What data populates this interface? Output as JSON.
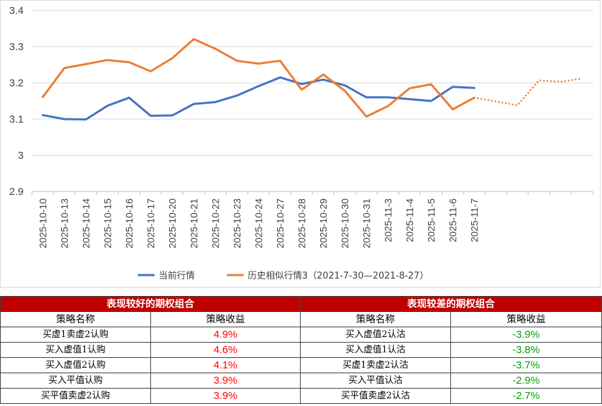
{
  "chart_data": {
    "type": "line",
    "categories": [
      "2025-10-10",
      "2025-10-13",
      "2025-10-14",
      "2025-10-15",
      "2025-10-16",
      "2025-10-17",
      "2025-10-20",
      "2025-10-21",
      "2025-10-22",
      "2025-10-23",
      "2025-10-24",
      "2025-10-27",
      "2025-10-28",
      "2025-10-29",
      "2025-10-30",
      "2025-10-31",
      "2025-11-3",
      "2025-11-4",
      "2025-11-5",
      "2025-11-6",
      "2025-11-7",
      "",
      "",
      "",
      "",
      ""
    ],
    "ylim": [
      2.9,
      3.4
    ],
    "yticks": [
      "2.9",
      "3",
      "3.1",
      "3.2",
      "3.3",
      "3.4"
    ],
    "ytick_values": [
      2.9,
      3.0,
      3.1,
      3.2,
      3.3,
      3.4
    ],
    "grid": "horizontal",
    "legend_position": "bottom",
    "series": [
      {
        "name": "当前行情",
        "color": "#4472c4",
        "style": "solid",
        "values": [
          3.111,
          3.1,
          3.099,
          3.137,
          3.159,
          3.109,
          3.11,
          3.142,
          3.147,
          3.165,
          3.191,
          3.215,
          3.197,
          3.209,
          3.193,
          3.16,
          3.16,
          3.155,
          3.15,
          3.189,
          3.186,
          null,
          null,
          null,
          null,
          null
        ]
      },
      {
        "name": "历史相似行情3（2021-7-30—2021-8-27）",
        "color": "#ed7d31",
        "style": "solid",
        "values": [
          3.161,
          3.241,
          3.252,
          3.263,
          3.257,
          3.232,
          3.268,
          3.321,
          3.294,
          3.261,
          3.253,
          3.261,
          3.181,
          3.223,
          3.178,
          3.107,
          3.136,
          3.185,
          3.196,
          3.127,
          3.159,
          null,
          null,
          null,
          null,
          null
        ]
      },
      {
        "name": "",
        "color": "#ed7d31",
        "style": "dotted",
        "values": [
          null,
          null,
          null,
          null,
          null,
          null,
          null,
          null,
          null,
          null,
          null,
          null,
          null,
          null,
          null,
          null,
          null,
          null,
          null,
          null,
          3.159,
          3.149,
          3.138,
          3.207,
          3.203,
          3.212
        ]
      }
    ]
  },
  "tables": {
    "good": {
      "title": "表现较好的期权组合",
      "col_name": "策略名称",
      "col_return": "策略收益",
      "rows": [
        {
          "name": "买虚1卖虚2认购",
          "return": "4.9%"
        },
        {
          "name": "买入虚值1认购",
          "return": "4.6%"
        },
        {
          "name": "买入虚值2认购",
          "return": "4.1%"
        },
        {
          "name": "买入平值认购",
          "return": "3.9%"
        },
        {
          "name": "买平值卖虚2认购",
          "return": "3.9%"
        }
      ]
    },
    "bad": {
      "title": "表现较差的期权组合",
      "col_name": "策略名称",
      "col_return": "策略收益",
      "rows": [
        {
          "name": "买入虚值2认沽",
          "return": "-3.9%"
        },
        {
          "name": "买入虚值1认沽",
          "return": "-3.8%"
        },
        {
          "name": "买虚1卖虚2认沽",
          "return": "-3.7%"
        },
        {
          "name": "买入平值认沽",
          "return": "-2.9%"
        },
        {
          "name": "买平值卖虚2认沽",
          "return": "-2.7%"
        }
      ]
    },
    "colors": {
      "header_bg": "#c00000",
      "positive": "#ff0000",
      "negative": "#00a000"
    }
  }
}
